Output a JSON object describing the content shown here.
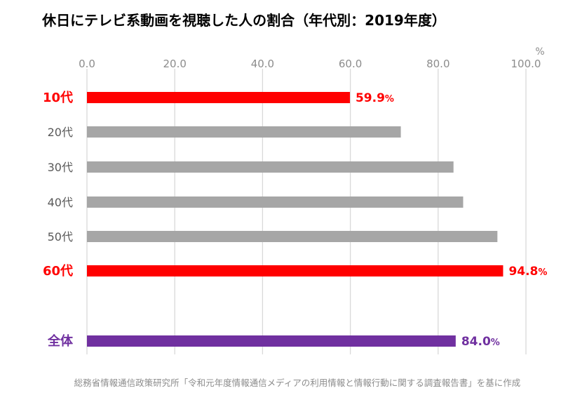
{
  "chart_data": {
    "type": "bar",
    "orientation": "horizontal",
    "title": "休日にテレビ系動画を視聴した人の割合（年代別：2019年度）",
    "unit": "%",
    "xlim": [
      0,
      100
    ],
    "ticks": [
      "0.0",
      "20.0",
      "40.0",
      "60.0",
      "80.0",
      "100.0"
    ],
    "tick_values": [
      0,
      20,
      40,
      60,
      80,
      100
    ],
    "grid": true,
    "categories": [
      "10代",
      "20代",
      "30代",
      "40代",
      "50代",
      "60代",
      "全体"
    ],
    "values": [
      59.9,
      71.5,
      83.5,
      85.7,
      93.5,
      94.8,
      84.0
    ],
    "data_labels": [
      {
        "category": "10代",
        "value": "59.9",
        "suffix": "%"
      },
      {
        "category": "60代",
        "value": "94.8",
        "suffix": "%"
      },
      {
        "category": "全体",
        "value": "84.0",
        "suffix": "%"
      }
    ],
    "colors": {
      "default": "#a6a6a6",
      "highlight_red": "#ff0000",
      "highlight_purple": "#7030a0",
      "grid": "#d9d9d9"
    },
    "highlight": {
      "10代": "red",
      "60代": "red",
      "全体": "purple"
    },
    "source": "総務省情報通信政策研究所「令和元年度情報通信メディアの利用情報と情報行動に関する調査報告書」を基に作成"
  }
}
